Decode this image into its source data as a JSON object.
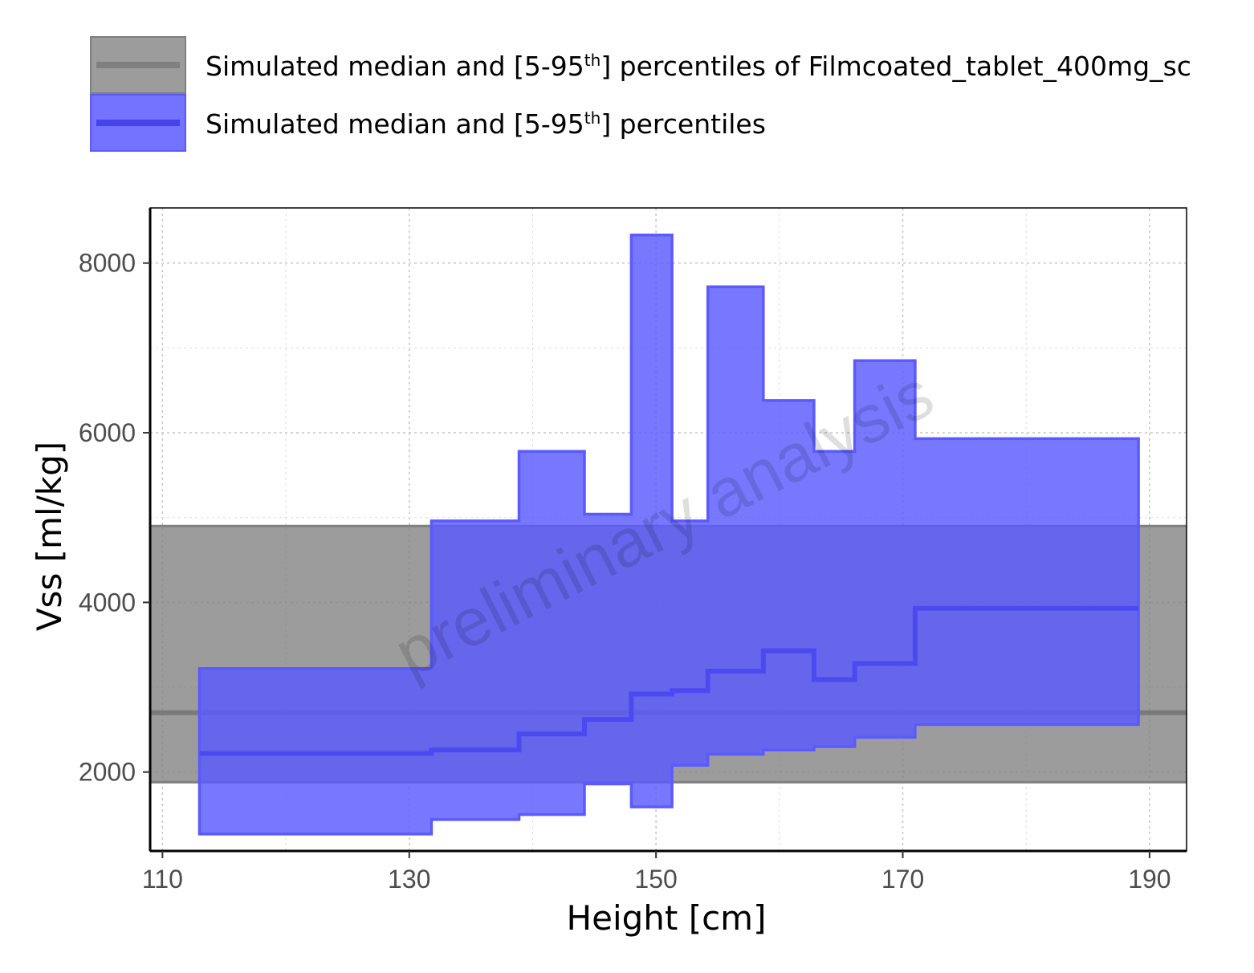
{
  "chart_data": {
    "type": "area",
    "xlabel": "Height [cm]",
    "ylabel": "Vss [ml/kg]",
    "xlim": [
      109,
      193
    ],
    "ylim": [
      1070,
      8650
    ],
    "x_ticks": [
      "110",
      "130",
      "150",
      "170",
      "190"
    ],
    "y_ticks": [
      "2000",
      "4000",
      "6000",
      "8000"
    ],
    "x_tick_values": [
      110,
      130,
      150,
      170,
      190
    ],
    "y_tick_values": [
      2000,
      4000,
      6000,
      8000
    ],
    "grid": true,
    "legend_position": "top",
    "watermark": "preliminary analysis",
    "legend": [
      {
        "pre": "Simulated median and [5-95",
        "sup": "th",
        "post": "] percentiles of Filmcoated_tablet_400mg_sc",
        "color": "#808080"
      },
      {
        "pre": "Simulated median and [5-95",
        "sup": "th",
        "post": "] percentiles",
        "color": "#5a5aff"
      }
    ],
    "reference_band": {
      "median": 2700,
      "p5": 1880,
      "p95": 4900,
      "color": "#808080"
    },
    "series": {
      "color": "#5a5aff",
      "bins": [
        {
          "x_start": 113.0,
          "x_end": 131.8,
          "median": 2220,
          "p5": 1270,
          "p95": 3220
        },
        {
          "x_start": 131.8,
          "x_end": 138.9,
          "median": 2260,
          "p5": 1440,
          "p95": 4960
        },
        {
          "x_start": 138.9,
          "x_end": 144.2,
          "median": 2450,
          "p5": 1500,
          "p95": 5780
        },
        {
          "x_start": 144.2,
          "x_end": 148.0,
          "median": 2620,
          "p5": 1860,
          "p95": 5040
        },
        {
          "x_start": 148.0,
          "x_end": 151.3,
          "median": 2920,
          "p5": 1590,
          "p95": 8330
        },
        {
          "x_start": 151.3,
          "x_end": 154.2,
          "median": 2960,
          "p5": 2080,
          "p95": 4960
        },
        {
          "x_start": 154.2,
          "x_end": 158.7,
          "median": 3190,
          "p5": 2210,
          "p95": 7720
        },
        {
          "x_start": 158.7,
          "x_end": 162.8,
          "median": 3430,
          "p5": 2260,
          "p95": 6380
        },
        {
          "x_start": 162.8,
          "x_end": 166.1,
          "median": 3090,
          "p5": 2300,
          "p95": 5780
        },
        {
          "x_start": 166.1,
          "x_end": 171.0,
          "median": 3280,
          "p5": 2410,
          "p95": 6850
        },
        {
          "x_start": 171.0,
          "x_end": 189.1,
          "median": 3930,
          "p5": 2560,
          "p95": 5930
        }
      ]
    }
  }
}
